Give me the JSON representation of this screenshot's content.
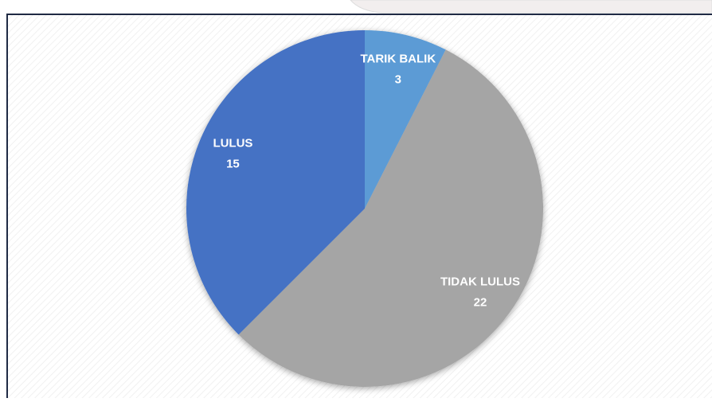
{
  "chart_data": {
    "type": "pie",
    "categories": [
      "TARIK BALIK",
      "TIDAK LULUS",
      "LULUS"
    ],
    "values": [
      3,
      22,
      15
    ],
    "colors": [
      "#5b9bd5",
      "#a5a5a5",
      "#4472c4"
    ]
  }
}
